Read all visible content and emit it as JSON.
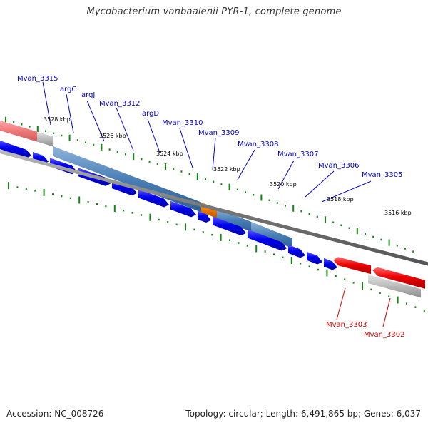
{
  "header": {
    "title": "Mycobacterium vanbaalenii PYR-1, complete genome"
  },
  "footer": {
    "accession": "Accession: NC_008726",
    "summary": "Topology: circular; Length: 6,491,865 bp; Genes: 6,037"
  },
  "map": {
    "tick_labels": [
      "3528 kbp",
      "3526 kbp",
      "3524 kbp",
      "3522 kbp",
      "3520 kbp",
      "3518 kbp",
      "3516 kbp"
    ],
    "gene_labels": [
      {
        "text": "Mvan_3315",
        "color": "blue"
      },
      {
        "text": "argC",
        "color": "blue"
      },
      {
        "text": "argJ",
        "color": "blue"
      },
      {
        "text": "Mvan_3312",
        "color": "blue"
      },
      {
        "text": "argD",
        "color": "blue"
      },
      {
        "text": "Mvan_3310",
        "color": "blue"
      },
      {
        "text": "Mvan_3309",
        "color": "blue"
      },
      {
        "text": "Mvan_3308",
        "color": "blue"
      },
      {
        "text": "Mvan_3307",
        "color": "blue"
      },
      {
        "text": "Mvan_3306",
        "color": "blue"
      },
      {
        "text": "Mvan_3305",
        "color": "blue"
      },
      {
        "text": "Mvan_3303",
        "color": "red"
      },
      {
        "text": "Mvan_3302",
        "color": "red"
      }
    ],
    "colors": {
      "gene_forward": "#0000ee",
      "gene_reverse": "#ee0000",
      "operon": "#4a7fb5",
      "highlight": "#ee7700",
      "tick": "#118811",
      "backbone": "#777777",
      "label_blue": "#0000cc",
      "label_red": "#cc0000"
    }
  }
}
